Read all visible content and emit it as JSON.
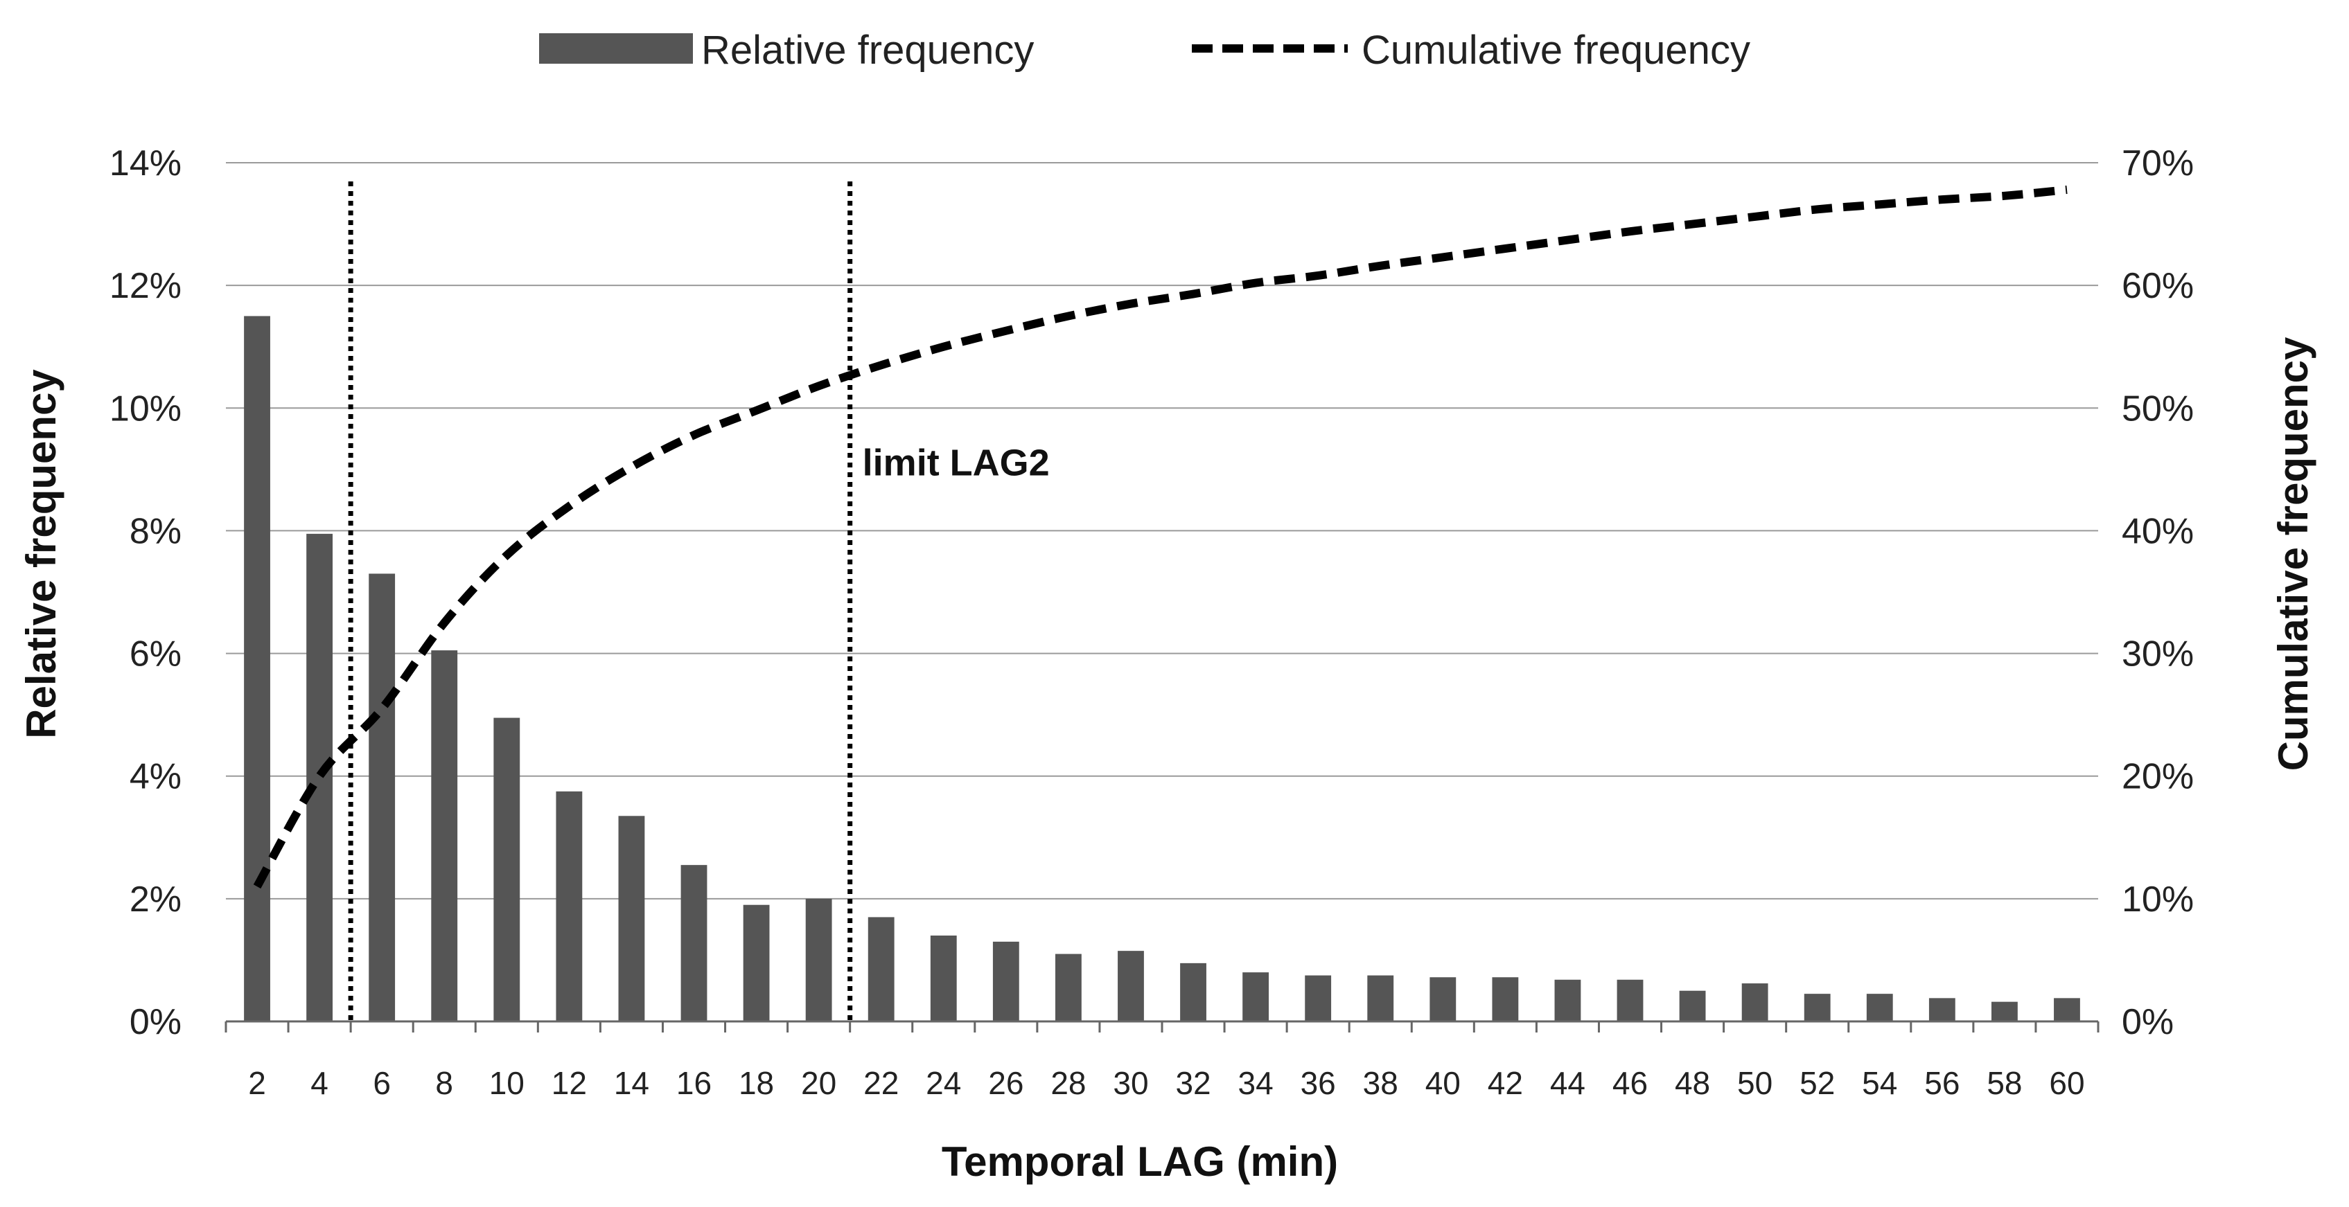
{
  "chart_data": {
    "type": "bar+line",
    "xlabel": "Temporal LAG (min)",
    "ylabel_left": "Relative frequency",
    "ylabel_right": "Cumulative frequency",
    "ylim_left": [
      0,
      14
    ],
    "ylim_right": [
      0,
      70
    ],
    "yticks_left": [
      "0%",
      "2%",
      "4%",
      "6%",
      "8%",
      "10%",
      "12%",
      "14%"
    ],
    "yticks_right": [
      "0%",
      "10%",
      "20%",
      "30%",
      "40%",
      "50%",
      "60%",
      "70%"
    ],
    "grid": true,
    "legend_position": "top-center",
    "legend": {
      "bar_label": "Relative frequency",
      "line_label": "Cumulative frequency"
    },
    "categories": [
      "2",
      "4",
      "6",
      "8",
      "10",
      "12",
      "14",
      "16",
      "18",
      "20",
      "22",
      "24",
      "26",
      "28",
      "30",
      "32",
      "34",
      "36",
      "38",
      "40",
      "42",
      "44",
      "46",
      "48",
      "50",
      "52",
      "54",
      "56",
      "58",
      "60"
    ],
    "series": [
      {
        "name": "Relative frequency",
        "kind": "bar",
        "axis": "left",
        "color": "#555555",
        "values": [
          11.5,
          7.95,
          7.3,
          6.05,
          4.95,
          3.75,
          3.35,
          2.55,
          1.9,
          2.0,
          1.7,
          1.4,
          1.3,
          1.1,
          1.15,
          0.95,
          0.8,
          0.75,
          0.75,
          0.72,
          0.72,
          0.68,
          0.68,
          0.5,
          0.62,
          0.45,
          0.45,
          0.38,
          0.32,
          0.38
        ]
      },
      {
        "name": "Cumulative frequency",
        "kind": "line",
        "style": "dashed",
        "axis": "right",
        "color": "#000000",
        "values": [
          11.0,
          20.0,
          25.5,
          32.5,
          38.0,
          42.0,
          45.2,
          47.8,
          49.8,
          51.8,
          53.5,
          55.0,
          56.3,
          57.5,
          58.5,
          59.3,
          60.2,
          60.8,
          61.6,
          62.3,
          63.0,
          63.7,
          64.4,
          65.0,
          65.6,
          66.2,
          66.6,
          67.0,
          67.3,
          67.8
        ]
      }
    ],
    "vertical_lines": [
      {
        "x": 5,
        "style": "dotted"
      },
      {
        "x": 21,
        "style": "dotted"
      }
    ],
    "annotations": [
      {
        "text": "limit LAG2",
        "x": 21.4,
        "y_left": 8.9
      }
    ]
  }
}
